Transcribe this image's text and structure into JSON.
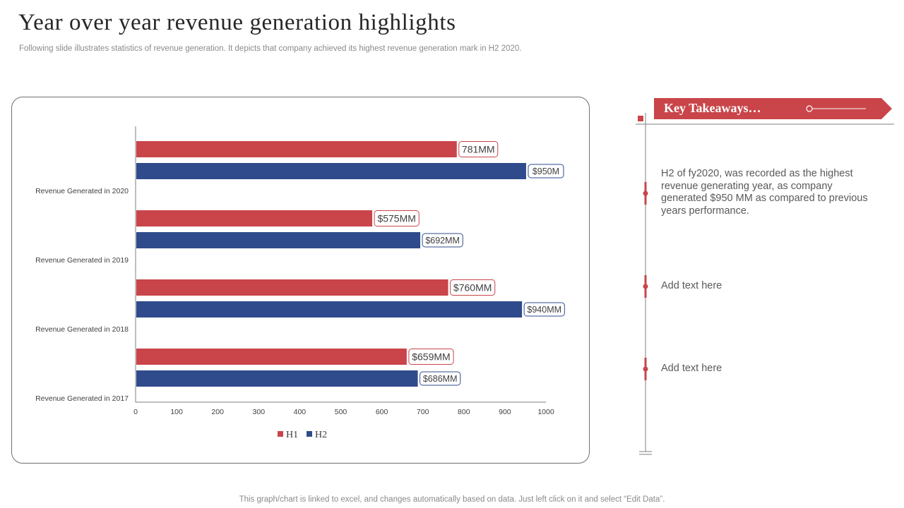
{
  "header": {
    "title": "Year over year revenue generation highlights",
    "subtitle": "Following slide illustrates statistics of revenue generation. It depicts that company achieved its highest revenue generation mark in H2 2020."
  },
  "chart_data": {
    "type": "bar",
    "orientation": "horizontal",
    "categories": [
      "Revenue Generated in 2020",
      "Revenue Generated in 2019",
      "Revenue Generated in 2018",
      "Revenue Generated in 2017"
    ],
    "series": [
      {
        "name": "H1",
        "color": "#c9454a",
        "values": [
          781,
          575,
          760,
          659
        ],
        "labels": [
          "781MM",
          "$575MM",
          "$760MM",
          "$659MM"
        ]
      },
      {
        "name": "H2",
        "color": "#2f4b8c",
        "values": [
          950,
          692,
          940,
          686
        ],
        "labels": [
          "$950M",
          "$692MM",
          "$940MM",
          "$686MM"
        ]
      }
    ],
    "xlim": [
      0,
      1000
    ],
    "xticks": [
      0,
      100,
      200,
      300,
      400,
      500,
      600,
      700,
      800,
      900,
      1000
    ],
    "legend_position": "bottom-center",
    "grid": false
  },
  "takeaways": {
    "title": "Key Takeaways…",
    "items": [
      "H2 of fy2020, was recorded as the highest revenue generating year, as company generated $950 MM as compared to previous years performance.",
      "Add text here",
      "Add text here"
    ]
  },
  "footer": {
    "note": "This graph/chart is linked to excel,  and changes automatically based on data. Just left click on it and select “Edit Data”."
  },
  "colors": {
    "accent": "#c9454a",
    "navy": "#2f4b8c",
    "timeline": "#7f7f7f"
  }
}
